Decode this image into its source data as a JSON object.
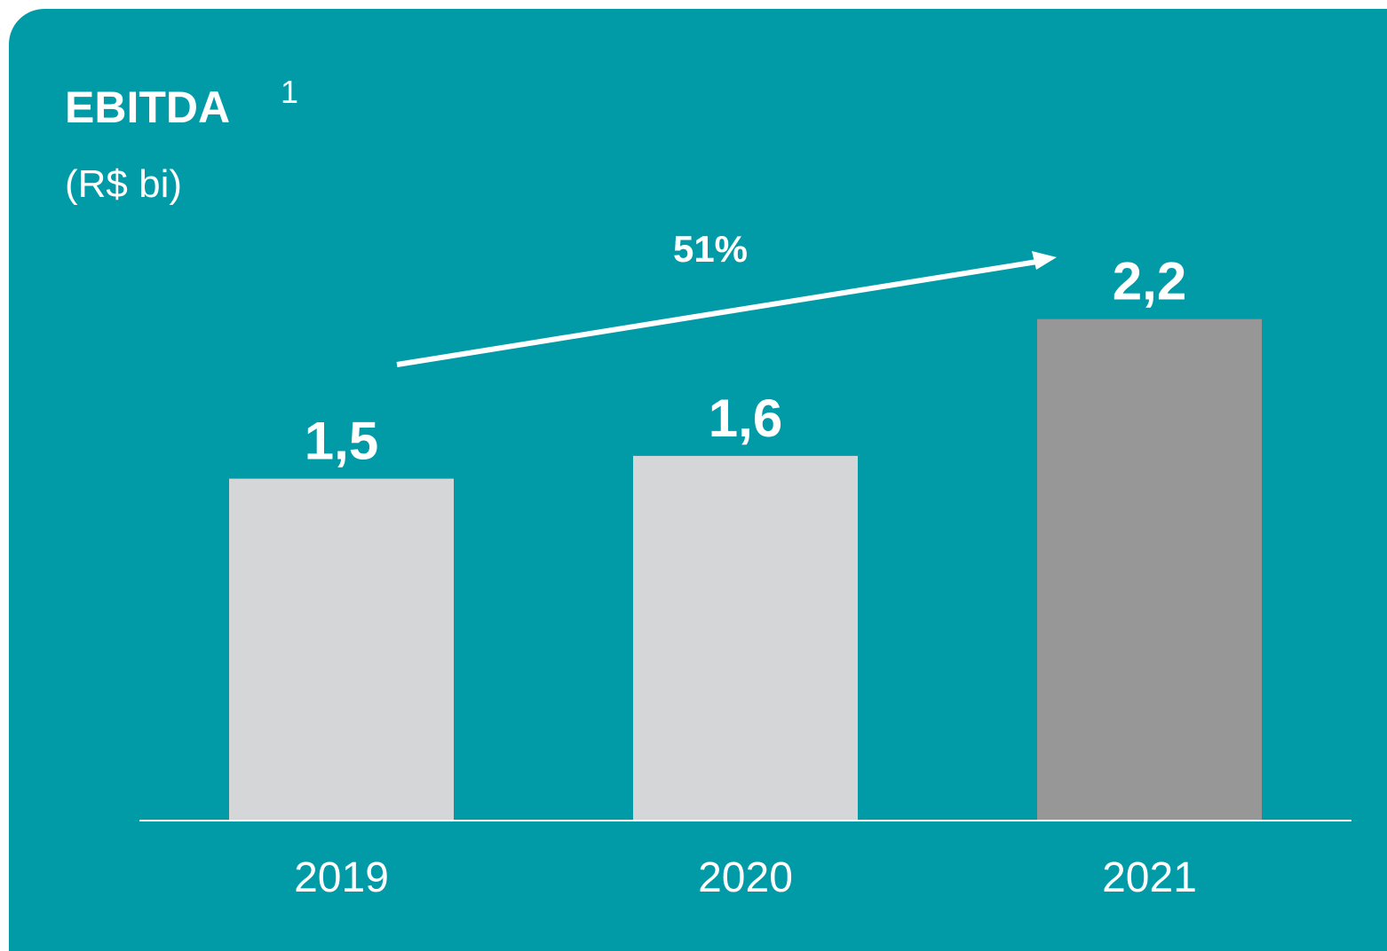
{
  "chart_data": {
    "type": "bar",
    "title": "EBITDA",
    "title_superscript": "1",
    "subtitle": "(R$ bi)",
    "annotation": "51%",
    "categories": [
      "2019",
      "2020",
      "2021"
    ],
    "values": [
      1.5,
      1.6,
      2.2
    ],
    "value_labels": [
      "1,5",
      "1,6",
      "2,2"
    ],
    "colors": [
      "#d4d6d8",
      "#d4d6d8",
      "#979797"
    ],
    "background": "#019ba8",
    "ylim": [
      0,
      3.6
    ]
  }
}
